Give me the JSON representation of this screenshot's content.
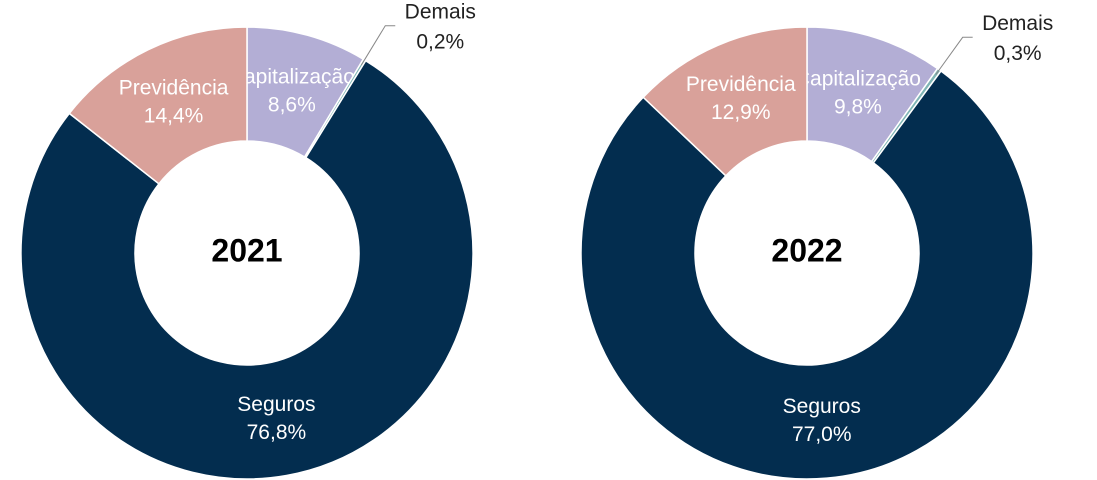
{
  "chart_data": [
    {
      "type": "pie",
      "title": "2021",
      "categories": [
        "Capitalização",
        "Demais",
        "Seguros",
        "Previdência"
      ],
      "values": [
        8.6,
        0.2,
        76.8,
        14.4
      ],
      "value_labels": [
        "8,6%",
        "0,2%",
        "76,8%",
        "14,4%"
      ],
      "colors": [
        "#b3aed5",
        "#7fb5b5",
        "#032d4f",
        "#d9a19a"
      ]
    },
    {
      "type": "pie",
      "title": "2022",
      "categories": [
        "Capitalização",
        "Demais",
        "Seguros",
        "Previdência"
      ],
      "values": [
        9.8,
        0.3,
        77.0,
        12.9
      ],
      "value_labels": [
        "9,8%",
        "0,3%",
        "77,0%",
        "12,9%"
      ],
      "colors": [
        "#b3aed5",
        "#7fb5b5",
        "#032d4f",
        "#d9a19a"
      ]
    }
  ]
}
